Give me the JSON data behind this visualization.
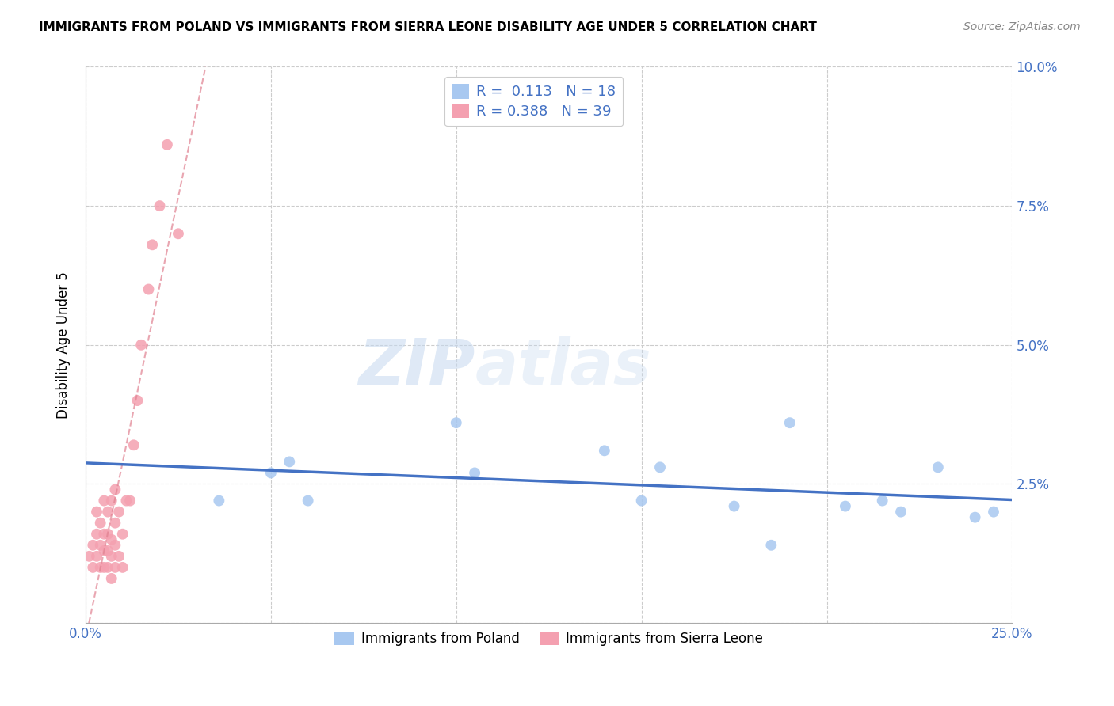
{
  "title": "IMMIGRANTS FROM POLAND VS IMMIGRANTS FROM SIERRA LEONE DISABILITY AGE UNDER 5 CORRELATION CHART",
  "source": "Source: ZipAtlas.com",
  "ylabel": "Disability Age Under 5",
  "xlim": [
    0.0,
    0.25
  ],
  "ylim": [
    0.0,
    0.1
  ],
  "xticks": [
    0.0,
    0.05,
    0.1,
    0.15,
    0.2,
    0.25
  ],
  "yticks": [
    0.0,
    0.025,
    0.05,
    0.075,
    0.1
  ],
  "poland_R": 0.113,
  "poland_N": 18,
  "sierra_leone_R": 0.388,
  "sierra_leone_N": 39,
  "poland_color": "#a8c8f0",
  "poland_line_color": "#4472c4",
  "sierra_leone_color": "#f4a0b0",
  "sierra_leone_line_color": "#e08090",
  "watermark_zip": "ZIP",
  "watermark_atlas": "atlas",
  "poland_x": [
    0.036,
    0.05,
    0.055,
    0.06,
    0.1,
    0.105,
    0.14,
    0.15,
    0.155,
    0.175,
    0.185,
    0.19,
    0.205,
    0.215,
    0.22,
    0.23,
    0.24,
    0.245
  ],
  "poland_y": [
    0.022,
    0.027,
    0.029,
    0.022,
    0.036,
    0.027,
    0.031,
    0.022,
    0.028,
    0.021,
    0.014,
    0.036,
    0.021,
    0.022,
    0.02,
    0.028,
    0.019,
    0.02
  ],
  "sierra_leone_x": [
    0.001,
    0.002,
    0.002,
    0.003,
    0.003,
    0.003,
    0.004,
    0.004,
    0.004,
    0.005,
    0.005,
    0.005,
    0.005,
    0.006,
    0.006,
    0.006,
    0.006,
    0.007,
    0.007,
    0.007,
    0.007,
    0.008,
    0.008,
    0.008,
    0.008,
    0.009,
    0.009,
    0.01,
    0.01,
    0.011,
    0.012,
    0.013,
    0.014,
    0.015,
    0.017,
    0.018,
    0.02,
    0.022,
    0.025
  ],
  "sierra_leone_y": [
    0.012,
    0.01,
    0.014,
    0.012,
    0.016,
    0.02,
    0.01,
    0.014,
    0.018,
    0.01,
    0.013,
    0.016,
    0.022,
    0.01,
    0.013,
    0.016,
    0.02,
    0.008,
    0.012,
    0.015,
    0.022,
    0.01,
    0.014,
    0.018,
    0.024,
    0.012,
    0.02,
    0.01,
    0.016,
    0.022,
    0.022,
    0.032,
    0.04,
    0.05,
    0.06,
    0.068,
    0.075,
    0.086,
    0.07
  ]
}
